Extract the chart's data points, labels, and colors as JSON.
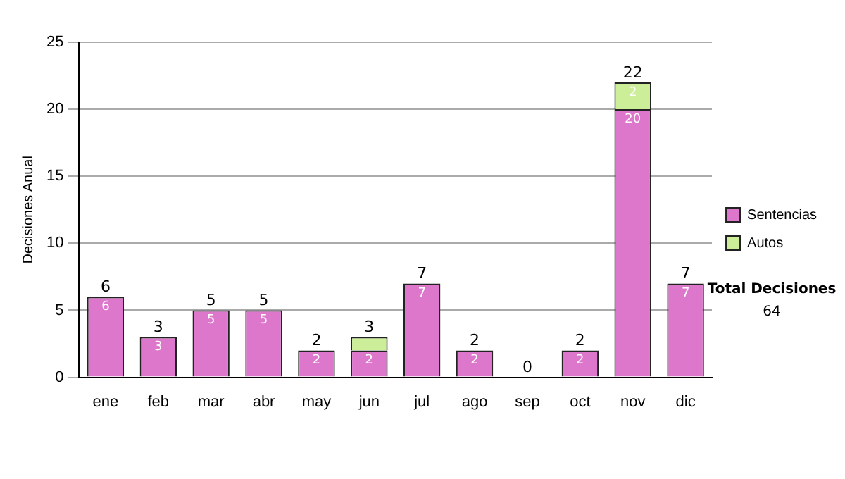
{
  "chart_data": {
    "type": "bar",
    "stacked": true,
    "ylabel": "Decisiones Anual",
    "categories": [
      "ene",
      "feb",
      "mar",
      "abr",
      "may",
      "jun",
      "jul",
      "ago",
      "sep",
      "oct",
      "nov",
      "dic"
    ],
    "series": [
      {
        "name": "Sentencias",
        "color": "#dd77cc",
        "values": [
          6,
          3,
          5,
          5,
          2,
          2,
          7,
          2,
          0,
          2,
          20,
          7
        ],
        "value_labels": [
          "6",
          "3",
          "5",
          "5",
          "2",
          "2",
          "7",
          "2",
          null,
          "2",
          "20",
          "7"
        ]
      },
      {
        "name": "Autos",
        "color": "#ccee99",
        "values": [
          0,
          0,
          0,
          0,
          0,
          1,
          0,
          0,
          0,
          0,
          2,
          0
        ],
        "value_labels": [
          null,
          null,
          null,
          null,
          null,
          null,
          null,
          null,
          null,
          null,
          "2",
          null
        ]
      }
    ],
    "totals": [
      "6",
      "3",
      "5",
      "5",
      "2",
      "3",
      "7",
      "2",
      "0",
      "2",
      "22",
      "7"
    ],
    "ylim": [
      0,
      25
    ],
    "yticks": [
      0,
      5,
      10,
      15,
      20,
      25
    ],
    "grid": "y",
    "legend": "right",
    "annotations": [
      "Total Decisiones",
      "64"
    ]
  }
}
